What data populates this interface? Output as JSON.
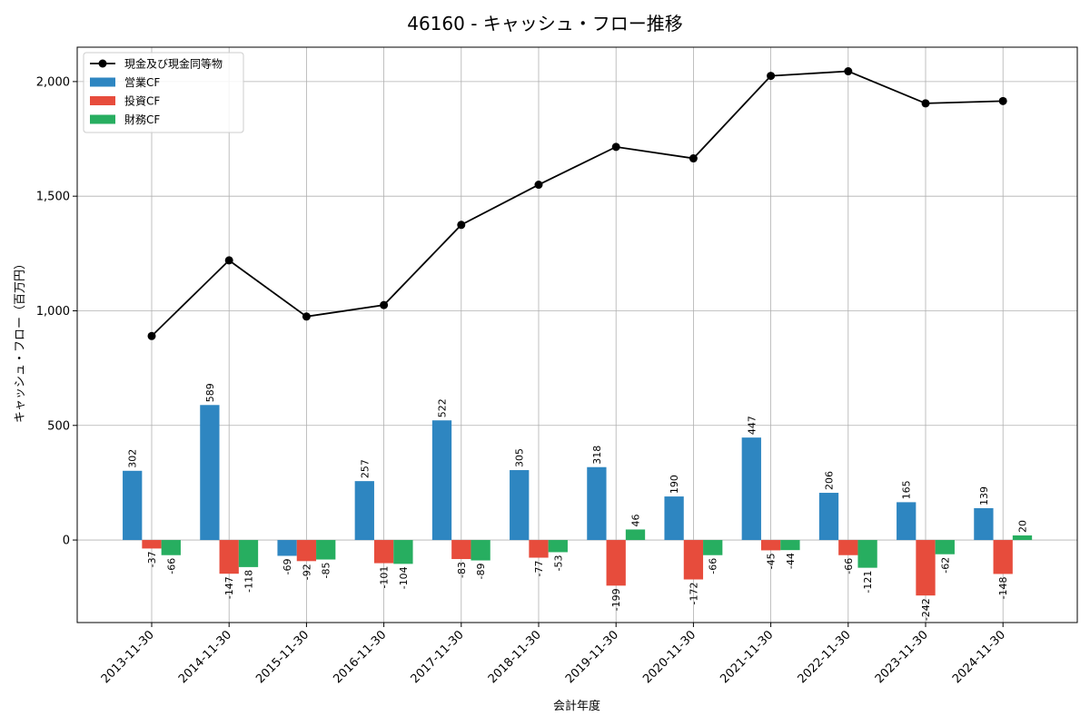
{
  "colors": {
    "operating": "#2e86c1",
    "investing": "#e74c3c",
    "financing": "#27ae60",
    "cash": "#000000"
  },
  "chart_data": {
    "type": "bar",
    "title": "46160 - キャッシュ・フロー推移",
    "xlabel": "会計年度",
    "ylabel": "キャッシュ・フロー（百万円）",
    "ylim": [
      -360,
      2150
    ],
    "yticks": [
      0,
      500,
      1000,
      1500,
      2000
    ],
    "ytick_labels": [
      "0",
      "500",
      "1,000",
      "1,500",
      "2,000"
    ],
    "grid": true,
    "legend_position": "top-left",
    "categories": [
      "2013-11-30",
      "2014-11-30",
      "2015-11-30",
      "2016-11-30",
      "2017-11-30",
      "2018-11-30",
      "2019-11-30",
      "2020-11-30",
      "2021-11-30",
      "2022-11-30",
      "2023-11-30",
      "2024-11-30"
    ],
    "series": [
      {
        "name": "営業CF",
        "type": "bar",
        "color": "#2e86c1",
        "values": [
          302,
          589,
          -69,
          257,
          522,
          305,
          318,
          190,
          447,
          206,
          165,
          139
        ]
      },
      {
        "name": "投資CF",
        "type": "bar",
        "color": "#e74c3c",
        "values": [
          -37,
          -147,
          -92,
          -101,
          -83,
          -77,
          -199,
          -172,
          -45,
          -66,
          -242,
          -148
        ]
      },
      {
        "name": "財務CF",
        "type": "bar",
        "color": "#27ae60",
        "values": [
          -66,
          -118,
          -85,
          -104,
          -89,
          -53,
          46,
          -66,
          -44,
          -121,
          -62,
          20
        ]
      },
      {
        "name": "現金及び現金同等物",
        "type": "line",
        "color": "#000000",
        "values": [
          890,
          1220,
          975,
          1025,
          1375,
          1550,
          1715,
          1665,
          2025,
          2045,
          1905,
          1915
        ]
      }
    ]
  }
}
